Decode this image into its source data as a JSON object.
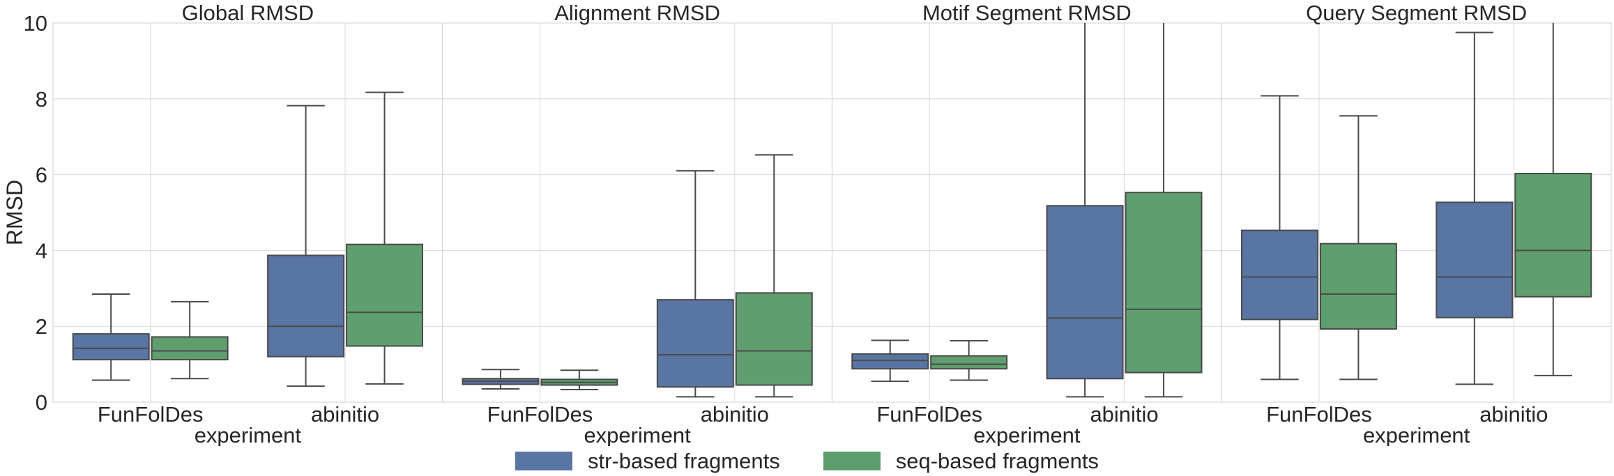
{
  "chart_data": {
    "type": "box",
    "ylabel": "RMSD",
    "ylim": [
      0,
      10
    ],
    "yticks": [
      0,
      2,
      4,
      6,
      8,
      10
    ],
    "grid": true,
    "legend_placement": "bottom-center",
    "categories": [
      "FunFolDes",
      "abinitio"
    ],
    "series": [
      {
        "name": "str-based fragments",
        "color": "#5975a4"
      },
      {
        "name": "seq-based fragments",
        "color": "#5f9e6e"
      }
    ],
    "panels": [
      {
        "title": "Global RMSD",
        "xlabel": "experiment",
        "boxes": [
          [
            {
              "whislo": 0.58,
              "q1": 1.12,
              "med": 1.42,
              "q3": 1.8,
              "whishi": 2.85
            },
            {
              "whislo": 0.62,
              "q1": 1.12,
              "med": 1.35,
              "q3": 1.72,
              "whishi": 2.65
            }
          ],
          [
            {
              "whislo": 0.42,
              "q1": 1.2,
              "med": 2.0,
              "q3": 3.87,
              "whishi": 7.82
            },
            {
              "whislo": 0.48,
              "q1": 1.48,
              "med": 2.37,
              "q3": 4.16,
              "whishi": 8.17
            }
          ]
        ]
      },
      {
        "title": "Alignment RMSD",
        "xlabel": "experiment",
        "boxes": [
          [
            {
              "whislo": 0.35,
              "q1": 0.47,
              "med": 0.55,
              "q3": 0.62,
              "whishi": 0.86
            },
            {
              "whislo": 0.33,
              "q1": 0.45,
              "med": 0.52,
              "q3": 0.6,
              "whishi": 0.84
            }
          ],
          [
            {
              "whislo": 0.14,
              "q1": 0.4,
              "med": 1.25,
              "q3": 2.7,
              "whishi": 6.1
            },
            {
              "whislo": 0.14,
              "q1": 0.45,
              "med": 1.35,
              "q3": 2.88,
              "whishi": 6.52
            }
          ]
        ]
      },
      {
        "title": "Motif Segment RMSD",
        "xlabel": "experiment",
        "boxes": [
          [
            {
              "whislo": 0.55,
              "q1": 0.88,
              "med": 1.1,
              "q3": 1.27,
              "whishi": 1.63
            },
            {
              "whislo": 0.58,
              "q1": 0.88,
              "med": 1.0,
              "q3": 1.22,
              "whishi": 1.62
            }
          ],
          [
            {
              "whislo": 0.14,
              "q1": 0.62,
              "med": 2.22,
              "q3": 5.18,
              "whishi": 10.0
            },
            {
              "whislo": 0.14,
              "q1": 0.78,
              "med": 2.45,
              "q3": 5.53,
              "whishi": 10.0
            }
          ]
        ]
      },
      {
        "title": "Query Segment RMSD",
        "xlabel": "experiment",
        "boxes": [
          [
            {
              "whislo": 0.6,
              "q1": 2.18,
              "med": 3.3,
              "q3": 4.53,
              "whishi": 8.08
            },
            {
              "whislo": 0.6,
              "q1": 1.93,
              "med": 2.85,
              "q3": 4.18,
              "whishi": 7.55
            }
          ],
          [
            {
              "whislo": 0.47,
              "q1": 2.23,
              "med": 3.3,
              "q3": 5.27,
              "whishi": 9.75
            },
            {
              "whislo": 0.7,
              "q1": 2.78,
              "med": 4.0,
              "q3": 6.03,
              "whishi": 10.0
            }
          ]
        ]
      }
    ]
  }
}
